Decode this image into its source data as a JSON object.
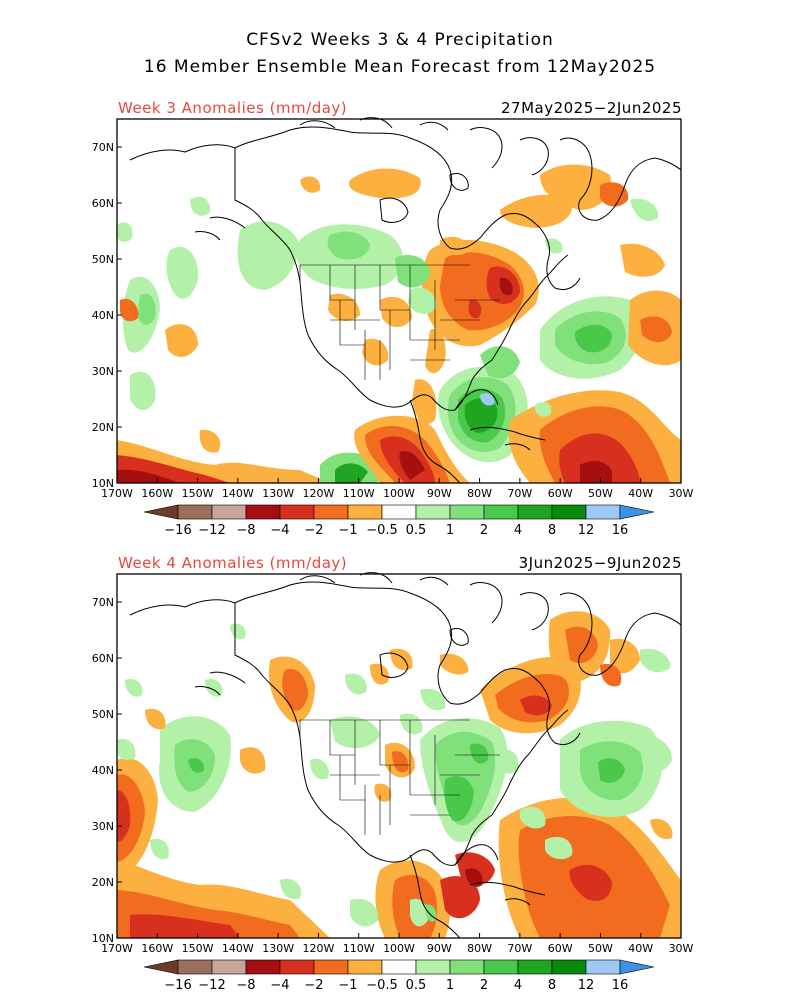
{
  "header": {
    "title": "CFSv2 Weeks 3 & 4 Precipitation",
    "subtitle": "16 Member Ensemble Mean Forecast from 12May2025"
  },
  "colors": {
    "-16": "#6e3b2a",
    "-12": "#9b6e5e",
    "-8": "#c8a49a",
    "-4": "#a50f0f",
    "-2": "#d7301f",
    "-1": "#f26c1f",
    "-0.5": "#fbb040",
    "0": "#ffffff",
    "0.5": "#b3f0a8",
    "1": "#80e07a",
    "2": "#4ac84a",
    "4": "#1fa51f",
    "8": "#0a8a0a",
    "12": "#9ec9f5",
    "16": "#3c90e8"
  },
  "axes": {
    "lon_labels": [
      "170W",
      "160W",
      "150W",
      "140W",
      "130W",
      "120W",
      "110W",
      "100W",
      "90W",
      "80W",
      "70W",
      "60W",
      "50W",
      "40W",
      "30W"
    ],
    "lat_labels": [
      "10N",
      "20N",
      "30N",
      "40N",
      "50N",
      "60N",
      "70N"
    ]
  },
  "colorbar": {
    "labels": [
      "−16",
      "−12",
      "−8",
      "−4",
      "−2",
      "−1",
      "−0.5",
      "0.5",
      "1",
      "2",
      "4",
      "8",
      "12",
      "16"
    ]
  },
  "panels": [
    {
      "label": "Week 3 Anomalies (mm/day)",
      "dates": "27May2025−2Jun2025"
    },
    {
      "label": "Week 4 Anomalies (mm/day)",
      "dates": "3Jun2025−9Jun2025"
    }
  ]
}
